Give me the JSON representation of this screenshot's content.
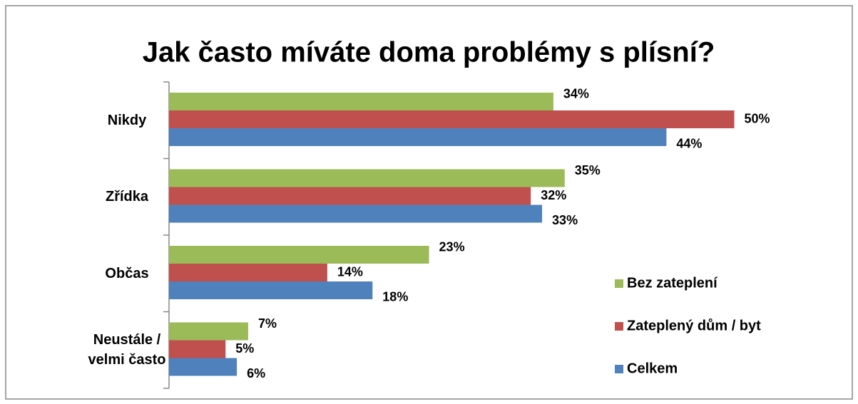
{
  "chart_data": {
    "type": "bar",
    "orientation": "horizontal",
    "title": "Jak často míváte doma problémy s plísní?",
    "categories": [
      "Nikdy",
      "Zřídka",
      "Občas",
      "Neustále / velmi často"
    ],
    "series": [
      {
        "name": "Bez zateplení",
        "color": "#9bbb59",
        "values": [
          34,
          35,
          23,
          7
        ],
        "value_labels": [
          "34%",
          "35%",
          "23%",
          "7%"
        ]
      },
      {
        "name": "Zateplený dům / byt",
        "color": "#c0504d",
        "values": [
          50,
          32,
          14,
          5
        ],
        "value_labels": [
          "50%",
          "32%",
          "14%",
          "5%"
        ]
      },
      {
        "name": "Celkem",
        "color": "#4f81bd",
        "values": [
          44,
          33,
          18,
          6
        ],
        "value_labels": [
          "44%",
          "33%",
          "18%",
          "6%"
        ]
      }
    ],
    "legend": "right"
  }
}
